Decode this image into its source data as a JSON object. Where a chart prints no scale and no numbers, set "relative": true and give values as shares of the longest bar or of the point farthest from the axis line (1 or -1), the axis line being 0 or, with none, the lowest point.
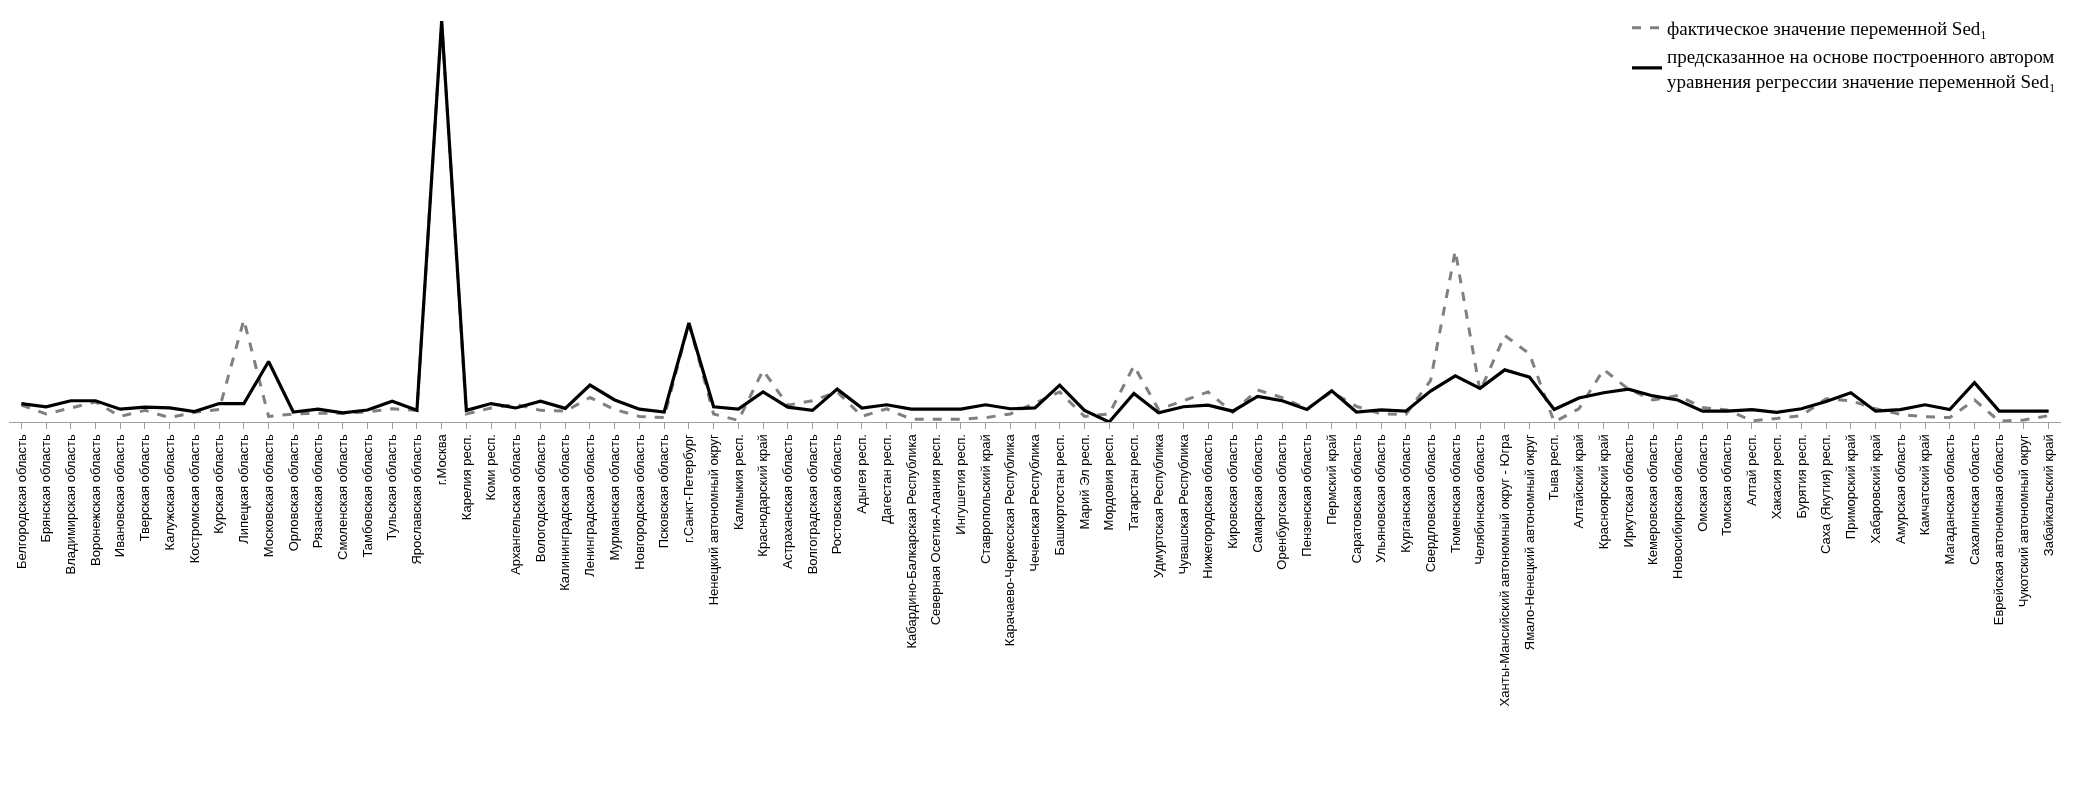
{
  "chart_data": {
    "type": "line",
    "relative": true,
    "legend": "top right",
    "categories": [
      "Белгородская область",
      "Брянская область",
      "Владимирская область",
      "Воронежская область",
      "Ивановская область",
      "Тверская область",
      "Калужская область",
      "Костромская область",
      "Курская область",
      "Липецкая область",
      "Московская область",
      "Орловская область",
      "Рязанская область",
      "Смоленская область",
      "Тамбовская область",
      "Тульская область",
      "Ярославская область",
      "г.Москва",
      "Карелия респ.",
      "Коми респ.",
      "Архангельская область",
      "Вологодская область",
      "Калининградская область",
      "Ленинградская область",
      "Мурманская область",
      "Новгородская область",
      "Псковская область",
      "г.Санкт-Петербург",
      "Ненецкий автономный округ",
      "Калмыкия респ.",
      "Краснодарский край",
      "Астраханская область",
      "Волгоградская область",
      "Ростовская область",
      "Адыгея респ.",
      "Дагестан респ.",
      "Кабардино-Балкарская Республика",
      "Северная Осетия-Алания респ.",
      "Ингушетия респ.",
      "Ставропольский край",
      "Карачаево-Черкесская Республика",
      "Чеченская Республика",
      "Башкортостан респ.",
      "Марий Эл респ.",
      "Мордовия респ.",
      "Татарстан респ.",
      "Удмуртская Республика",
      "Чувашская Республика",
      "Нижегородская область",
      "Кировская область",
      "Самарская область",
      "Оренбургская область",
      "Пензенская область",
      "Пермский край",
      "Саратовская область",
      "Ульяновская область",
      "Курганская область",
      "Свердловская область",
      "Тюменская область",
      "Челябинская область",
      "Ханты-Мансийский автономный округ - Югра",
      "Ямало-Ненецкий автономный округ",
      "Тыва респ.",
      "Алтайский край",
      "Красноярский край",
      "Иркутская область",
      "Кемеровская область",
      "Новосибирская область",
      "Омская область",
      "Томская область",
      "Алтай респ.",
      "Хакасия респ.",
      "Бурятия респ.",
      "Саха (Якутия) респ.",
      "Приморский край",
      "Хабаровский край",
      "Амурская область",
      "Камчатский край",
      "Магаданская область",
      "Сахалинская область",
      "Еврейская автономная область",
      "Чукотский автономный округ",
      "Забайкальский край"
    ],
    "series": [
      {
        "name": "фактическое значение переменной Sed₁",
        "color": "#808080",
        "line_style": "dashed",
        "values": [
          0.042,
          0.02,
          0.035,
          0.05,
          0.014,
          0.029,
          0.011,
          0.024,
          0.031,
          0.255,
          0.014,
          0.02,
          0.022,
          0.022,
          0.025,
          0.033,
          0.029,
          1,
          0.02,
          0.035,
          0.044,
          0.029,
          0.027,
          0.061,
          0.031,
          0.014,
          0.011,
          0.247,
          0.02,
          0.004,
          0.129,
          0.042,
          0.053,
          0.075,
          0.014,
          0.033,
          0.007,
          0.007,
          0.007,
          0.011,
          0.02,
          0.047,
          0.075,
          0.014,
          0.02,
          0.14,
          0.031,
          0.053,
          0.075,
          0.024,
          0.08,
          0.061,
          0.033,
          0.075,
          0.039,
          0.02,
          0.019,
          0.104,
          0.427,
          0.077,
          0.216,
          0.17,
          0,
          0.033,
          0.131,
          0.082,
          0.055,
          0.066,
          0.036,
          0.03,
          0.003,
          0.009,
          0.016,
          0.058,
          0.053,
          0.033,
          0.019,
          0.013,
          0.011,
          0.055,
          0.002,
          0.005,
          0.016
        ]
      },
      {
        "name": "предсказанное на основе построенного автором уравнения регрессии значение переменной Sed₁",
        "color": "#000000",
        "line_style": "solid",
        "values": [
          0.046,
          0.038,
          0.053,
          0.053,
          0.032,
          0.037,
          0.035,
          0.026,
          0.046,
          0.046,
          0.151,
          0.025,
          0.032,
          0.023,
          0.03,
          0.052,
          0.029,
          1,
          0.029,
          0.046,
          0.035,
          0.052,
          0.034,
          0.092,
          0.055,
          0.032,
          0.025,
          0.247,
          0.038,
          0.032,
          0.075,
          0.037,
          0.029,
          0.082,
          0.035,
          0.043,
          0.032,
          0.032,
          0.032,
          0.043,
          0.033,
          0.035,
          0.092,
          0.029,
          0,
          0.071,
          0.023,
          0.038,
          0.042,
          0.027,
          0.064,
          0.053,
          0.031,
          0.078,
          0.025,
          0.03,
          0.027,
          0.077,
          0.115,
          0.084,
          0.13,
          0.112,
          0.031,
          0.06,
          0.073,
          0.082,
          0.065,
          0.055,
          0.027,
          0.027,
          0.031,
          0.024,
          0.033,
          0.051,
          0.073,
          0.027,
          0.031,
          0.043,
          0.031,
          0.098,
          0.027,
          0.027,
          0.027
        ]
      }
    ]
  }
}
